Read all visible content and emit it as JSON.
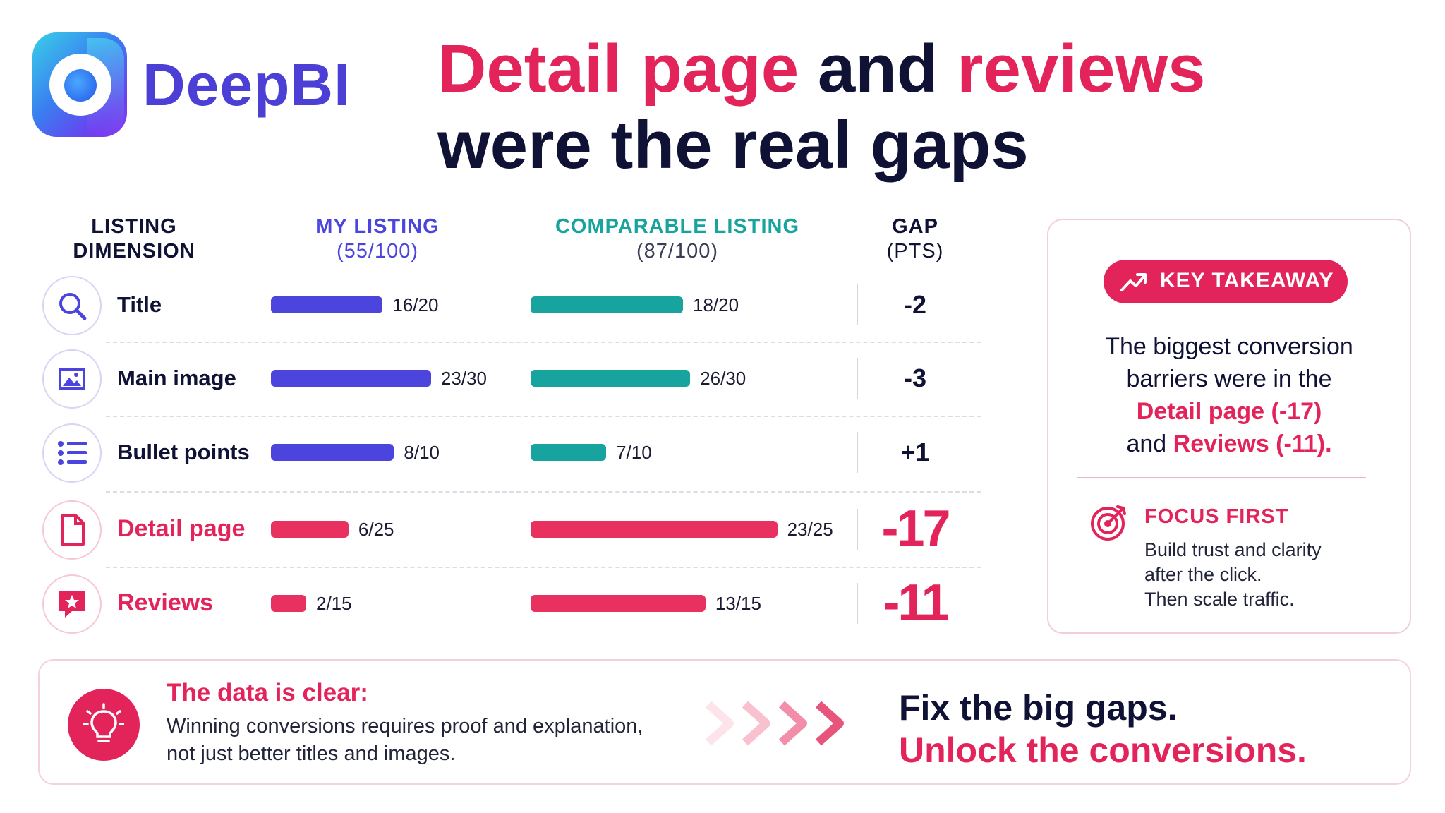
{
  "brand": {
    "name": "DeepBI"
  },
  "title": {
    "part1": "Detail page",
    "part2": " and ",
    "part3": "reviews",
    "line2": "were the real gaps"
  },
  "colors": {
    "my_listing": "#4b45dd",
    "comparable": "#17a39e",
    "gap_highlight": "#e8315f",
    "accent": "#e3245b"
  },
  "table": {
    "headers": {
      "dimension": "LISTING DIMENSION",
      "my_listing": "MY LISTING",
      "my_listing_score": "(55/100)",
      "comparable": "COMPARABLE LISTING",
      "comparable_score": "(87/100)",
      "gap": "GAP",
      "gap_unit": "(PTS)"
    }
  },
  "chart_data": {
    "type": "bar",
    "orientation": "horizontal",
    "categories": [
      "Title",
      "Main image",
      "Bullet points",
      "Detail page",
      "Reviews"
    ],
    "icons": [
      "search-icon",
      "image-icon",
      "list-icon",
      "document-icon",
      "star-chat-icon"
    ],
    "series": [
      {
        "name": "MY LISTING",
        "values": [
          16,
          23,
          8,
          6,
          2
        ],
        "labels": [
          "16/20",
          "23/30",
          "8/10",
          "6/25",
          "2/15"
        ]
      },
      {
        "name": "COMPARABLE LISTING",
        "values": [
          18,
          26,
          7,
          23,
          13
        ],
        "labels": [
          "18/20",
          "26/30",
          "7/10",
          "23/25",
          "13/15"
        ]
      }
    ],
    "max_points": [
      20,
      30,
      10,
      25,
      15
    ],
    "gaps": [
      "-2",
      "-3",
      "+1",
      "-17",
      "-11"
    ],
    "highlighted": [
      false,
      false,
      false,
      true,
      true
    ]
  },
  "takeaway": {
    "label": "KEY TAKEAWAY",
    "line1": "The biggest conversion",
    "line2": "barriers were in the",
    "highlight1": "Detail page (-17)",
    "and": "and ",
    "highlight2": "Reviews (-11)",
    "period": ".",
    "focus_title": "FOCUS FIRST",
    "focus_line1": "Build trust and clarity",
    "focus_line2": "after the click.",
    "focus_line3": "Then scale traffic."
  },
  "banner": {
    "title": "The data is clear:",
    "line1": "Winning conversions requires proof and explanation,",
    "line2": "not just better titles and images.",
    "cta1": "Fix the big gaps.",
    "cta2": "Unlock the conversions."
  }
}
